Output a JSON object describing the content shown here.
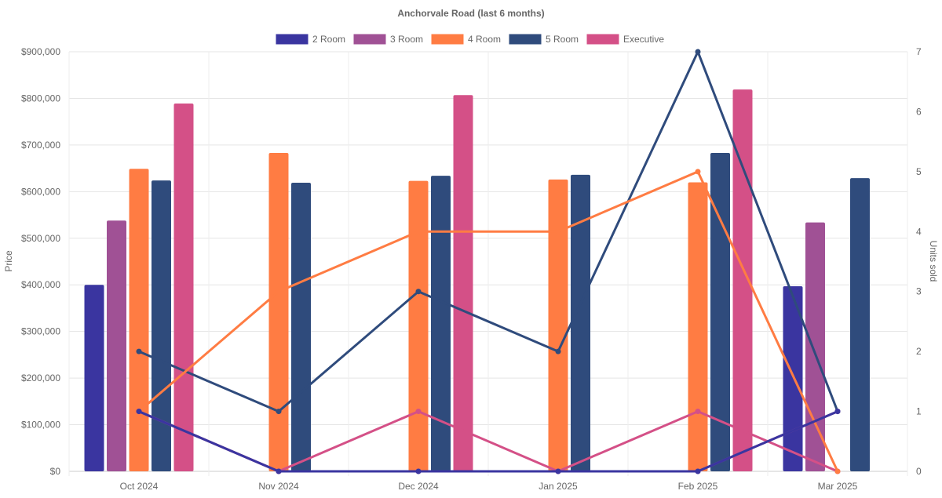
{
  "chart_data": {
    "type": "bar",
    "title": "Anchorvale Road (last 6 months)",
    "categories": [
      "Oct 2024",
      "Nov 2024",
      "Dec 2024",
      "Jan 2025",
      "Feb 2025",
      "Mar 2025"
    ],
    "ylabel": "Price",
    "y2label": "Units sold",
    "ylim": [
      0,
      900000
    ],
    "y2lim": [
      0,
      7
    ],
    "yticks": [
      "$0",
      "$100,000",
      "$200,000",
      "$300,000",
      "$400,000",
      "$500,000",
      "$600,000",
      "$700,000",
      "$800,000",
      "$900,000"
    ],
    "y2ticks": [
      "0",
      "1",
      "2",
      "3",
      "4",
      "5",
      "6",
      "7"
    ],
    "legend_position": "top",
    "grid": true,
    "series": [
      {
        "name": "2 Room",
        "color": "#3a35a0",
        "price": [
          400000,
          null,
          null,
          null,
          null,
          397000
        ],
        "units": [
          1,
          0,
          0,
          0,
          0,
          1
        ]
      },
      {
        "name": "3 Room",
        "color": "#a05195",
        "price": [
          538000,
          null,
          null,
          null,
          null,
          534000
        ],
        "units": [
          1,
          0,
          0,
          0,
          0,
          1
        ]
      },
      {
        "name": "4 Room",
        "color": "#ff7c43",
        "price": [
          649000,
          683000,
          623000,
          626000,
          620000,
          null
        ],
        "units": [
          1,
          3,
          4,
          4,
          5,
          0
        ]
      },
      {
        "name": "5 Room",
        "color": "#2f4b7c",
        "price": [
          624000,
          619000,
          634000,
          636000,
          683000,
          629000
        ],
        "units": [
          2,
          1,
          3,
          2,
          7,
          1
        ]
      },
      {
        "name": "Executive",
        "color": "#d45087",
        "price": [
          789000,
          null,
          807000,
          null,
          819000,
          null
        ],
        "units": [
          1,
          0,
          1,
          0,
          1,
          0
        ]
      }
    ]
  }
}
